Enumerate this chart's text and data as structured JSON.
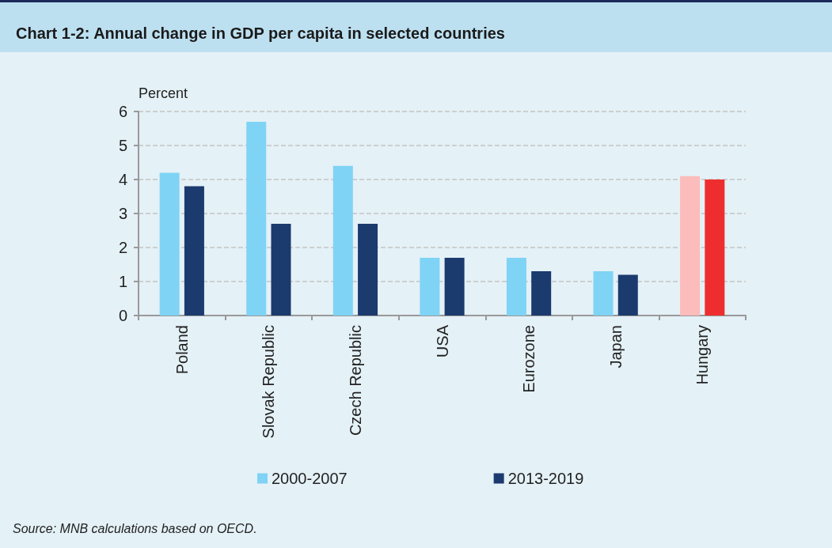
{
  "chart_data": {
    "type": "bar",
    "title": "Chart 1-2: Annual change in GDP per capita in selected countries",
    "ylabel": "Percent",
    "categories": [
      "Poland",
      "Slovak Republic",
      "Czech Republic",
      "USA",
      "Eurozone",
      "Japan",
      "Hungary"
    ],
    "series": [
      {
        "name": "2000-2007",
        "color": "#7fd3f5",
        "colors": [
          "#7fd3f5",
          "#7fd3f5",
          "#7fd3f5",
          "#7fd3f5",
          "#7fd3f5",
          "#7fd3f5",
          "#fbbcbb"
        ],
        "values": [
          4.2,
          5.7,
          4.4,
          1.7,
          1.7,
          1.3,
          4.1
        ]
      },
      {
        "name": "2013-2019",
        "color": "#1b3a6e",
        "colors": [
          "#1b3a6e",
          "#1b3a6e",
          "#1b3a6e",
          "#1b3a6e",
          "#1b3a6e",
          "#1b3a6e",
          "#ee2e2e"
        ],
        "values": [
          3.8,
          2.7,
          2.7,
          1.7,
          1.3,
          1.2,
          4.0
        ]
      }
    ],
    "ylim": [
      0,
      6
    ],
    "yticks": [
      0,
      1,
      2,
      3,
      4,
      5,
      6
    ],
    "grid": "y",
    "legend": "bottom",
    "annotations": [
      "Source: MNB calculations based on OECD."
    ]
  }
}
